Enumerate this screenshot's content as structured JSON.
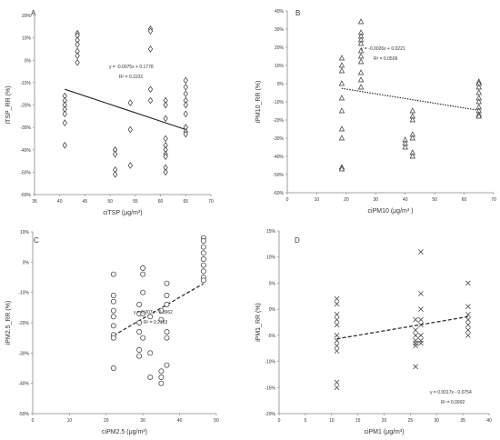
{
  "chart_data": [
    {
      "id": "A",
      "panel_label": "A",
      "type": "scatter",
      "marker": "diamond",
      "xlabel": "ciTSP",
      "xunit": " (μg/m³)",
      "ylabel": "iTSP_RR (%)",
      "xlim": [
        35,
        70
      ],
      "xticks": [
        35,
        40,
        45,
        50,
        55,
        60,
        65,
        70
      ],
      "ylim": [
        -0.6,
        0.2
      ],
      "yticks": [
        -0.6,
        -0.5,
        -0.4,
        -0.3,
        -0.2,
        -0.1,
        0.0,
        0.1,
        0.2
      ],
      "ytick_labels": [
        "-60%",
        "-50%",
        "-40%",
        "-30%",
        "-20%",
        "-10%",
        "0%",
        "10%",
        "20%"
      ],
      "points": [
        [
          41,
          -0.16
        ],
        [
          41,
          -0.18
        ],
        [
          41,
          -0.2
        ],
        [
          41,
          -0.22
        ],
        [
          41,
          -0.24
        ],
        [
          41,
          -0.28
        ],
        [
          41,
          -0.38
        ],
        [
          43.5,
          0.12
        ],
        [
          43.5,
          0.11
        ],
        [
          43.5,
          0.09
        ],
        [
          43.5,
          0.07
        ],
        [
          43.5,
          0.04
        ],
        [
          43.5,
          0.02
        ],
        [
          43.5,
          -0.01
        ],
        [
          51,
          -0.4
        ],
        [
          51,
          -0.42
        ],
        [
          51,
          -0.49
        ],
        [
          51,
          -0.51
        ],
        [
          54,
          -0.19
        ],
        [
          54,
          -0.31
        ],
        [
          54,
          -0.47
        ],
        [
          58,
          0.14
        ],
        [
          58,
          0.13
        ],
        [
          58,
          0.05
        ],
        [
          58,
          -0.13
        ],
        [
          58,
          -0.18
        ],
        [
          61,
          -0.18
        ],
        [
          61,
          -0.2
        ],
        [
          61,
          -0.26
        ],
        [
          61,
          -0.35
        ],
        [
          61,
          -0.38
        ],
        [
          61,
          -0.4
        ],
        [
          61,
          -0.42
        ],
        [
          61,
          -0.43
        ],
        [
          61,
          -0.48
        ],
        [
          61,
          -0.5
        ],
        [
          65,
          -0.09
        ],
        [
          65,
          -0.12
        ],
        [
          65,
          -0.15
        ],
        [
          65,
          -0.18
        ],
        [
          65,
          -0.2
        ],
        [
          65,
          -0.24
        ],
        [
          65,
          -0.3
        ],
        [
          65,
          -0.32
        ],
        [
          65,
          -0.33
        ]
      ],
      "trend": {
        "slope": -0.0075,
        "intercept": 0.1778,
        "x_range": [
          41,
          65
        ],
        "style": "solid"
      },
      "equation": "y = -0.0075x + 0.1778",
      "r2": "R² = 0.1103"
    },
    {
      "id": "B",
      "panel_label": "B",
      "type": "scatter",
      "marker": "triangle",
      "xlabel": "ciPM10",
      "xunit": " (μg/m³ )",
      "ylabel": "iPM10_RR (%)",
      "xlim": [
        0,
        70
      ],
      "xticks": [
        0,
        10,
        20,
        30,
        40,
        50,
        60,
        70
      ],
      "ylim": [
        -0.6,
        0.4
      ],
      "yticks": [
        -0.6,
        -0.5,
        -0.4,
        -0.3,
        -0.2,
        -0.1,
        0.0,
        0.1,
        0.2,
        0.3,
        0.4
      ],
      "ytick_labels": [
        "-60%",
        "-50%",
        "-40%",
        "-30%",
        "-20%",
        "-10%",
        "0%",
        "10%",
        "20%",
        "30%",
        "40%"
      ],
      "points": [
        [
          18.5,
          0.14
        ],
        [
          18.5,
          0.1
        ],
        [
          18.5,
          0.07
        ],
        [
          18.5,
          0.0
        ],
        [
          18.5,
          -0.08
        ],
        [
          18.5,
          -0.15
        ],
        [
          18.5,
          -0.25
        ],
        [
          18.5,
          -0.3
        ],
        [
          18.5,
          -0.46
        ],
        [
          18.5,
          -0.47
        ],
        [
          25,
          0.34
        ],
        [
          25,
          0.28
        ],
        [
          25,
          0.26
        ],
        [
          25,
          0.24
        ],
        [
          25,
          0.22
        ],
        [
          25,
          0.18
        ],
        [
          25,
          0.15
        ],
        [
          25,
          0.12
        ],
        [
          25,
          0.06
        ],
        [
          25,
          0.02
        ],
        [
          25,
          -0.02
        ],
        [
          40,
          -0.31
        ],
        [
          40,
          -0.33
        ],
        [
          40,
          -0.35
        ],
        [
          42.5,
          -0.15
        ],
        [
          42.5,
          -0.18
        ],
        [
          42.5,
          -0.2
        ],
        [
          42.5,
          -0.28
        ],
        [
          42.5,
          -0.3
        ],
        [
          42.5,
          -0.38
        ],
        [
          42.5,
          -0.4
        ],
        [
          65,
          0.01
        ],
        [
          65,
          0.0
        ],
        [
          65,
          -0.02
        ],
        [
          65,
          -0.05
        ],
        [
          65,
          -0.08
        ],
        [
          65,
          -0.1
        ],
        [
          65,
          -0.13
        ],
        [
          65,
          -0.15
        ],
        [
          65,
          -0.17
        ],
        [
          65,
          -0.18
        ]
      ],
      "trend": {
        "slope": -0.0026,
        "intercept": 0.0221,
        "x_range": [
          18.5,
          65
        ],
        "style": "dotted"
      },
      "equation": "y = -0.0026x + 0.0221",
      "r2": "R² = 0.0509"
    },
    {
      "id": "C",
      "panel_label": "C",
      "type": "scatter",
      "marker": "circle",
      "xlabel": "ciPM2.5",
      "xunit": " (μg/m³)",
      "ylabel": "iPM2.5_RR (%)",
      "xlim": [
        0,
        50
      ],
      "xticks": [
        0,
        10,
        20,
        30,
        40,
        50
      ],
      "ylim": [
        -0.5,
        0.1
      ],
      "yticks": [
        -0.5,
        -0.4,
        -0.3,
        -0.2,
        -0.1,
        0.0,
        0.1
      ],
      "ytick_labels": [
        "-50%",
        "-40%",
        "-30%",
        "-20%",
        "-10%",
        "0%",
        "10%"
      ],
      "points": [
        [
          22,
          -0.04
        ],
        [
          22,
          -0.11
        ],
        [
          22,
          -0.13
        ],
        [
          22,
          -0.16
        ],
        [
          22,
          -0.18
        ],
        [
          22,
          -0.21
        ],
        [
          22,
          -0.24
        ],
        [
          22,
          -0.25
        ],
        [
          22,
          -0.35
        ],
        [
          29,
          -0.14
        ],
        [
          29,
          -0.17
        ],
        [
          29,
          -0.2
        ],
        [
          29,
          -0.23
        ],
        [
          29,
          -0.29
        ],
        [
          29,
          -0.31
        ],
        [
          30,
          -0.02
        ],
        [
          30,
          -0.04
        ],
        [
          30,
          -0.1
        ],
        [
          30,
          -0.17
        ],
        [
          30,
          -0.25
        ],
        [
          32,
          -0.18
        ],
        [
          32,
          -0.3
        ],
        [
          32,
          -0.38
        ],
        [
          35,
          -0.16
        ],
        [
          35,
          -0.19
        ],
        [
          35,
          -0.36
        ],
        [
          35,
          -0.38
        ],
        [
          35,
          -0.4
        ],
        [
          36.5,
          -0.07
        ],
        [
          36.5,
          -0.11
        ],
        [
          36.5,
          -0.14
        ],
        [
          36.5,
          -0.23
        ],
        [
          36.5,
          -0.25
        ],
        [
          36.5,
          -0.34
        ],
        [
          46.5,
          0.08
        ],
        [
          46.5,
          0.07
        ],
        [
          46.5,
          0.05
        ],
        [
          46.5,
          0.03
        ],
        [
          46.5,
          0.01
        ],
        [
          46.5,
          -0.01
        ],
        [
          46.5,
          -0.03
        ],
        [
          46.5,
          -0.05
        ],
        [
          46.5,
          -0.06
        ]
      ],
      "trend": {
        "slope": 0.007,
        "intercept": -0.3962,
        "x_range": [
          22,
          46.5
        ],
        "style": "dashed"
      },
      "equation": "y = 0.007x - 0.3962",
      "r2": "R² = 0.2183"
    },
    {
      "id": "D",
      "panel_label": "D",
      "type": "scatter",
      "marker": "cross",
      "xlabel": "ciPM1",
      "xunit": " (μg/m³)",
      "ylabel": "iPM1_RR (%)",
      "xlim": [
        0,
        40
      ],
      "xticks": [
        0,
        5,
        10,
        15,
        20,
        25,
        30,
        35,
        40
      ],
      "ylim": [
        -0.2,
        0.15
      ],
      "yticks": [
        -0.2,
        -0.15,
        -0.1,
        -0.05,
        0.0,
        0.05,
        0.1,
        0.15
      ],
      "ytick_labels": [
        "-20%",
        "-15%",
        "-10%",
        "-5%",
        "0%",
        "5%",
        "10%",
        "15%"
      ],
      "points": [
        [
          11,
          0.02
        ],
        [
          11,
          0.01
        ],
        [
          11,
          -0.01
        ],
        [
          11,
          -0.02
        ],
        [
          11,
          -0.03
        ],
        [
          11,
          -0.05
        ],
        [
          11,
          -0.06
        ],
        [
          11,
          -0.07
        ],
        [
          11,
          -0.08
        ],
        [
          11,
          -0.14
        ],
        [
          11,
          -0.15
        ],
        [
          26,
          -0.02
        ],
        [
          26,
          -0.04
        ],
        [
          26,
          -0.05
        ],
        [
          26,
          -0.06
        ],
        [
          26,
          -0.065
        ],
        [
          26,
          -0.07
        ],
        [
          26,
          -0.11
        ],
        [
          27,
          0.11
        ],
        [
          27,
          0.03
        ],
        [
          27,
          0.0
        ],
        [
          27,
          -0.02
        ],
        [
          27,
          -0.03
        ],
        [
          27,
          -0.05
        ],
        [
          27,
          -0.06
        ],
        [
          27,
          -0.065
        ],
        [
          36,
          0.05
        ],
        [
          36,
          0.005
        ],
        [
          36,
          -0.01
        ],
        [
          36,
          -0.02
        ],
        [
          36,
          -0.03
        ],
        [
          36,
          -0.04
        ],
        [
          36,
          -0.05
        ]
      ],
      "trend": {
        "slope": 0.0017,
        "intercept": -0.0754,
        "x_range": [
          11,
          36
        ],
        "style": "dashed"
      },
      "equation": "y = 0.0017x - 0.0754",
      "r2": "R² = 0.0992"
    }
  ]
}
